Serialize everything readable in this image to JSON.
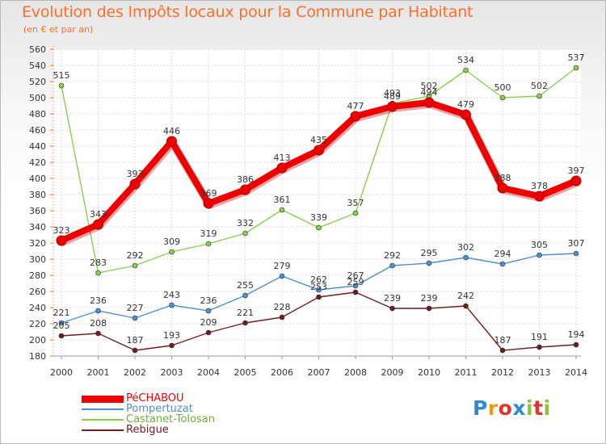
{
  "chart_data": {
    "type": "line",
    "title": "Evolution des Impôts locaux pour la Commune par Habitant",
    "subtitle": "(en € et par an)",
    "x": [
      "2000",
      "2001",
      "2002",
      "2003",
      "2004",
      "2005",
      "2006",
      "2007",
      "2008",
      "2009",
      "2010",
      "2011",
      "2012",
      "2013",
      "2014"
    ],
    "ylim": [
      180,
      560
    ],
    "yticks": [
      180,
      200,
      220,
      240,
      260,
      280,
      300,
      320,
      340,
      360,
      380,
      400,
      420,
      440,
      460,
      480,
      500,
      520,
      540,
      560
    ],
    "grid": true,
    "legend_position": "bottom-left",
    "series": [
      {
        "name": "PéCHABOU",
        "color": "#ee0000",
        "values": [
          323,
          343,
          393,
          446,
          369,
          386,
          413,
          435,
          477,
          489,
          494,
          479,
          388,
          378,
          397
        ]
      },
      {
        "name": "Pompertuzat",
        "color": "#4f8fcf",
        "values": [
          221,
          236,
          227,
          243,
          236,
          255,
          279,
          262,
          267,
          292,
          295,
          302,
          294,
          305,
          307
        ]
      },
      {
        "name": "Castanet-Tolosan",
        "color": "#8ad04e",
        "values": [
          515,
          283,
          292,
          309,
          319,
          332,
          361,
          339,
          357,
          493,
          502,
          534,
          500,
          502,
          537
        ]
      },
      {
        "name": "Rebigue",
        "color": "#6b1f22",
        "values": [
          205,
          208,
          187,
          193,
          209,
          221,
          228,
          253,
          259,
          239,
          239,
          242,
          187,
          191,
          194
        ]
      }
    ]
  },
  "logo": {
    "letters": [
      "P",
      "r",
      "o",
      "x",
      "i",
      "t",
      "i"
    ],
    "colors": [
      "#2d8ccf",
      "#f29a16",
      "#e4342a",
      "#2d8ccf",
      "#8fc23c",
      "#e4342a",
      "#8fc23c"
    ]
  }
}
